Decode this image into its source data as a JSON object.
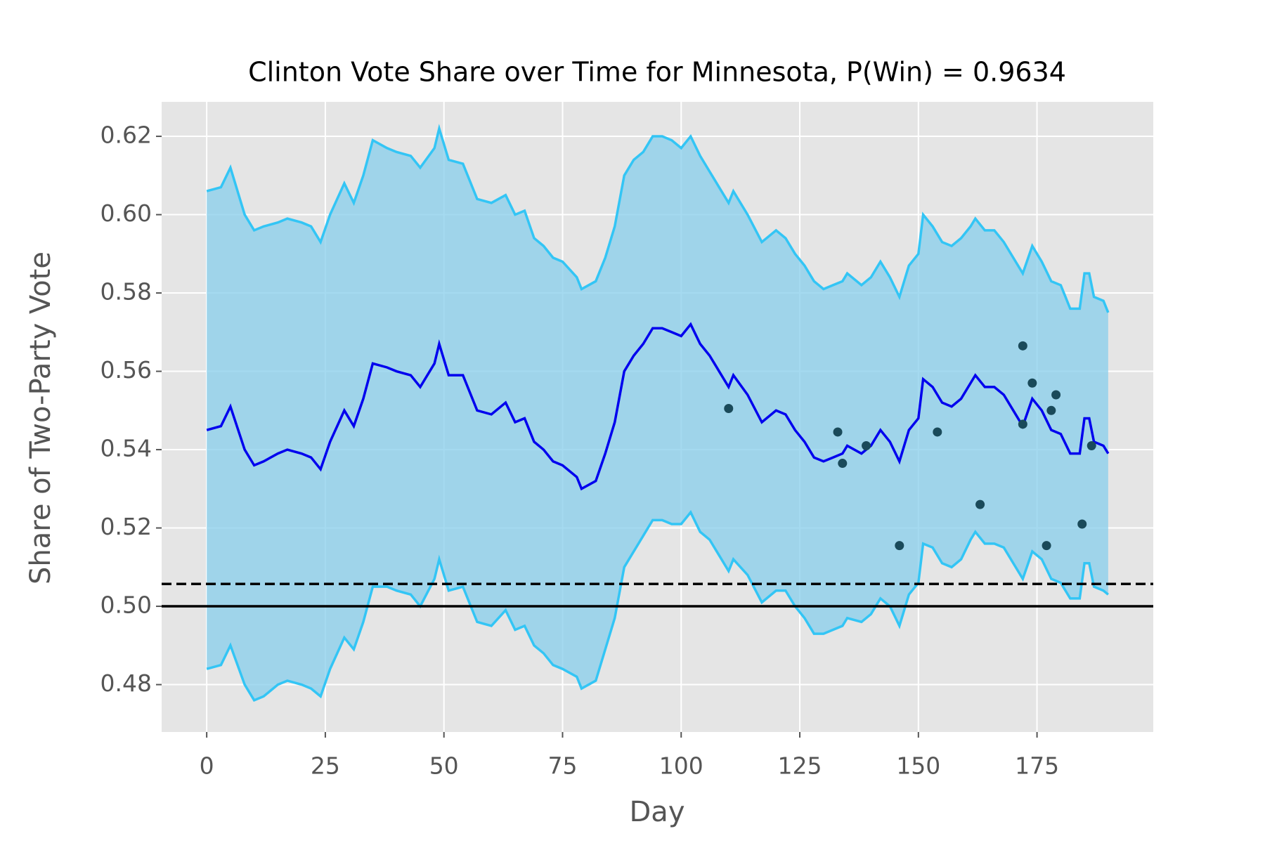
{
  "chart_data": {
    "type": "line",
    "title": "Clinton Vote Share over Time for Minnesota, P(Win) = 0.9634",
    "x_label": "Day",
    "y_label": "Share of Two-Party Vote",
    "x": [
      0,
      3,
      5,
      8,
      10,
      12,
      15,
      17,
      20,
      22,
      24,
      26,
      29,
      31,
      33,
      35,
      38,
      40,
      43,
      45,
      48,
      49,
      51,
      54,
      57,
      60,
      63,
      65,
      67,
      69,
      71,
      73,
      75,
      78,
      79,
      82,
      84,
      86,
      88,
      90,
      92,
      94,
      96,
      98,
      100,
      102,
      104,
      106,
      108,
      110,
      111,
      114,
      117,
      120,
      122,
      124,
      126,
      128,
      130,
      132,
      134,
      135,
      138,
      140,
      142,
      144,
      146,
      148,
      150,
      151,
      153,
      155,
      157,
      159,
      161,
      162,
      164,
      166,
      168,
      170,
      172,
      174,
      176,
      178,
      180,
      182,
      184,
      185,
      186,
      187,
      189,
      190
    ],
    "series": [
      {
        "color": "#33c5f5",
        "role": "upper",
        "values": [
          0.606,
          0.607,
          0.612,
          0.6,
          0.596,
          0.597,
          0.598,
          0.599,
          0.598,
          0.597,
          0.593,
          0.6,
          0.608,
          0.603,
          0.61,
          0.619,
          0.617,
          0.616,
          0.615,
          0.612,
          0.617,
          0.622,
          0.614,
          0.613,
          0.604,
          0.603,
          0.605,
          0.6,
          0.601,
          0.594,
          0.592,
          0.589,
          0.588,
          0.584,
          0.581,
          0.583,
          0.589,
          0.597,
          0.61,
          0.614,
          0.616,
          0.62,
          0.62,
          0.619,
          0.617,
          0.62,
          0.615,
          0.611,
          0.607,
          0.603,
          0.606,
          0.6,
          0.593,
          0.596,
          0.594,
          0.59,
          0.587,
          0.583,
          0.581,
          0.582,
          0.583,
          0.585,
          0.582,
          0.584,
          0.588,
          0.584,
          0.579,
          0.587,
          0.59,
          0.6,
          0.597,
          0.593,
          0.592,
          0.594,
          0.597,
          0.599,
          0.596,
          0.596,
          0.593,
          0.589,
          0.585,
          0.592,
          0.588,
          0.583,
          0.582,
          0.576,
          0.576,
          0.585,
          0.585,
          0.579,
          0.578,
          0.575
        ]
      },
      {
        "color": "#33c5f5",
        "role": "lower",
        "values": [
          0.484,
          0.485,
          0.49,
          0.48,
          0.476,
          0.477,
          0.48,
          0.481,
          0.48,
          0.479,
          0.477,
          0.484,
          0.492,
          0.489,
          0.496,
          0.505,
          0.505,
          0.504,
          0.503,
          0.5,
          0.507,
          0.512,
          0.504,
          0.505,
          0.496,
          0.495,
          0.499,
          0.494,
          0.495,
          0.49,
          0.488,
          0.485,
          0.484,
          0.482,
          0.479,
          0.481,
          0.489,
          0.497,
          0.51,
          0.514,
          0.518,
          0.522,
          0.522,
          0.521,
          0.521,
          0.524,
          0.519,
          0.517,
          0.513,
          0.509,
          0.512,
          0.508,
          0.501,
          0.504,
          0.504,
          0.5,
          0.497,
          0.493,
          0.493,
          0.494,
          0.495,
          0.497,
          0.496,
          0.498,
          0.502,
          0.5,
          0.495,
          0.503,
          0.506,
          0.516,
          0.515,
          0.511,
          0.51,
          0.512,
          0.517,
          0.519,
          0.516,
          0.516,
          0.515,
          0.511,
          0.507,
          0.514,
          0.512,
          0.507,
          0.506,
          0.502,
          0.502,
          0.511,
          0.511,
          0.505,
          0.504,
          0.503
        ]
      },
      {
        "color": "#0000ee",
        "role": "mean",
        "values": [
          0.545,
          0.546,
          0.551,
          0.54,
          0.536,
          0.537,
          0.539,
          0.54,
          0.539,
          0.538,
          0.535,
          0.542,
          0.55,
          0.546,
          0.553,
          0.562,
          0.561,
          0.56,
          0.559,
          0.556,
          0.562,
          0.567,
          0.559,
          0.559,
          0.55,
          0.549,
          0.552,
          0.547,
          0.548,
          0.542,
          0.54,
          0.537,
          0.536,
          0.533,
          0.53,
          0.532,
          0.539,
          0.547,
          0.56,
          0.564,
          0.567,
          0.571,
          0.571,
          0.57,
          0.569,
          0.572,
          0.567,
          0.564,
          0.56,
          0.556,
          0.559,
          0.554,
          0.547,
          0.55,
          0.549,
          0.545,
          0.542,
          0.538,
          0.537,
          0.538,
          0.539,
          0.541,
          0.539,
          0.541,
          0.545,
          0.542,
          0.537,
          0.545,
          0.548,
          0.558,
          0.556,
          0.552,
          0.551,
          0.553,
          0.557,
          0.559,
          0.556,
          0.556,
          0.554,
          0.55,
          0.546,
          0.553,
          0.55,
          0.545,
          0.544,
          0.539,
          0.539,
          0.548,
          0.548,
          0.542,
          0.541,
          0.539
        ]
      }
    ],
    "band_color": "#87ceeb",
    "points": {
      "color": "#1a4a5a",
      "x": [
        110,
        133,
        134,
        139,
        146,
        154,
        163,
        172,
        172,
        174,
        177,
        178,
        179,
        184.5,
        186.5
      ],
      "y": [
        0.5505,
        0.5445,
        0.5365,
        0.541,
        0.5155,
        0.5445,
        0.526,
        0.5465,
        0.5665,
        0.557,
        0.5155,
        0.55,
        0.554,
        0.521,
        0.541
      ]
    },
    "hlines": [
      {
        "value": 0.5,
        "style": "solid"
      },
      {
        "value": 0.5057,
        "style": "dashed"
      }
    ],
    "xlim": [
      -9.5,
      199.5
    ],
    "ylim": [
      0.4679,
      0.6288
    ],
    "xticks": [
      0,
      25,
      50,
      75,
      100,
      125,
      150,
      175
    ],
    "yticks": [
      0.48,
      {
        "value": 0.5,
        "label": "0.50"
      },
      0.52,
      0.54,
      0.56,
      0.58,
      {
        "value": 0.6,
        "label": "0.60"
      },
      0.62
    ],
    "grid": true,
    "background": "#e5e5e5"
  }
}
